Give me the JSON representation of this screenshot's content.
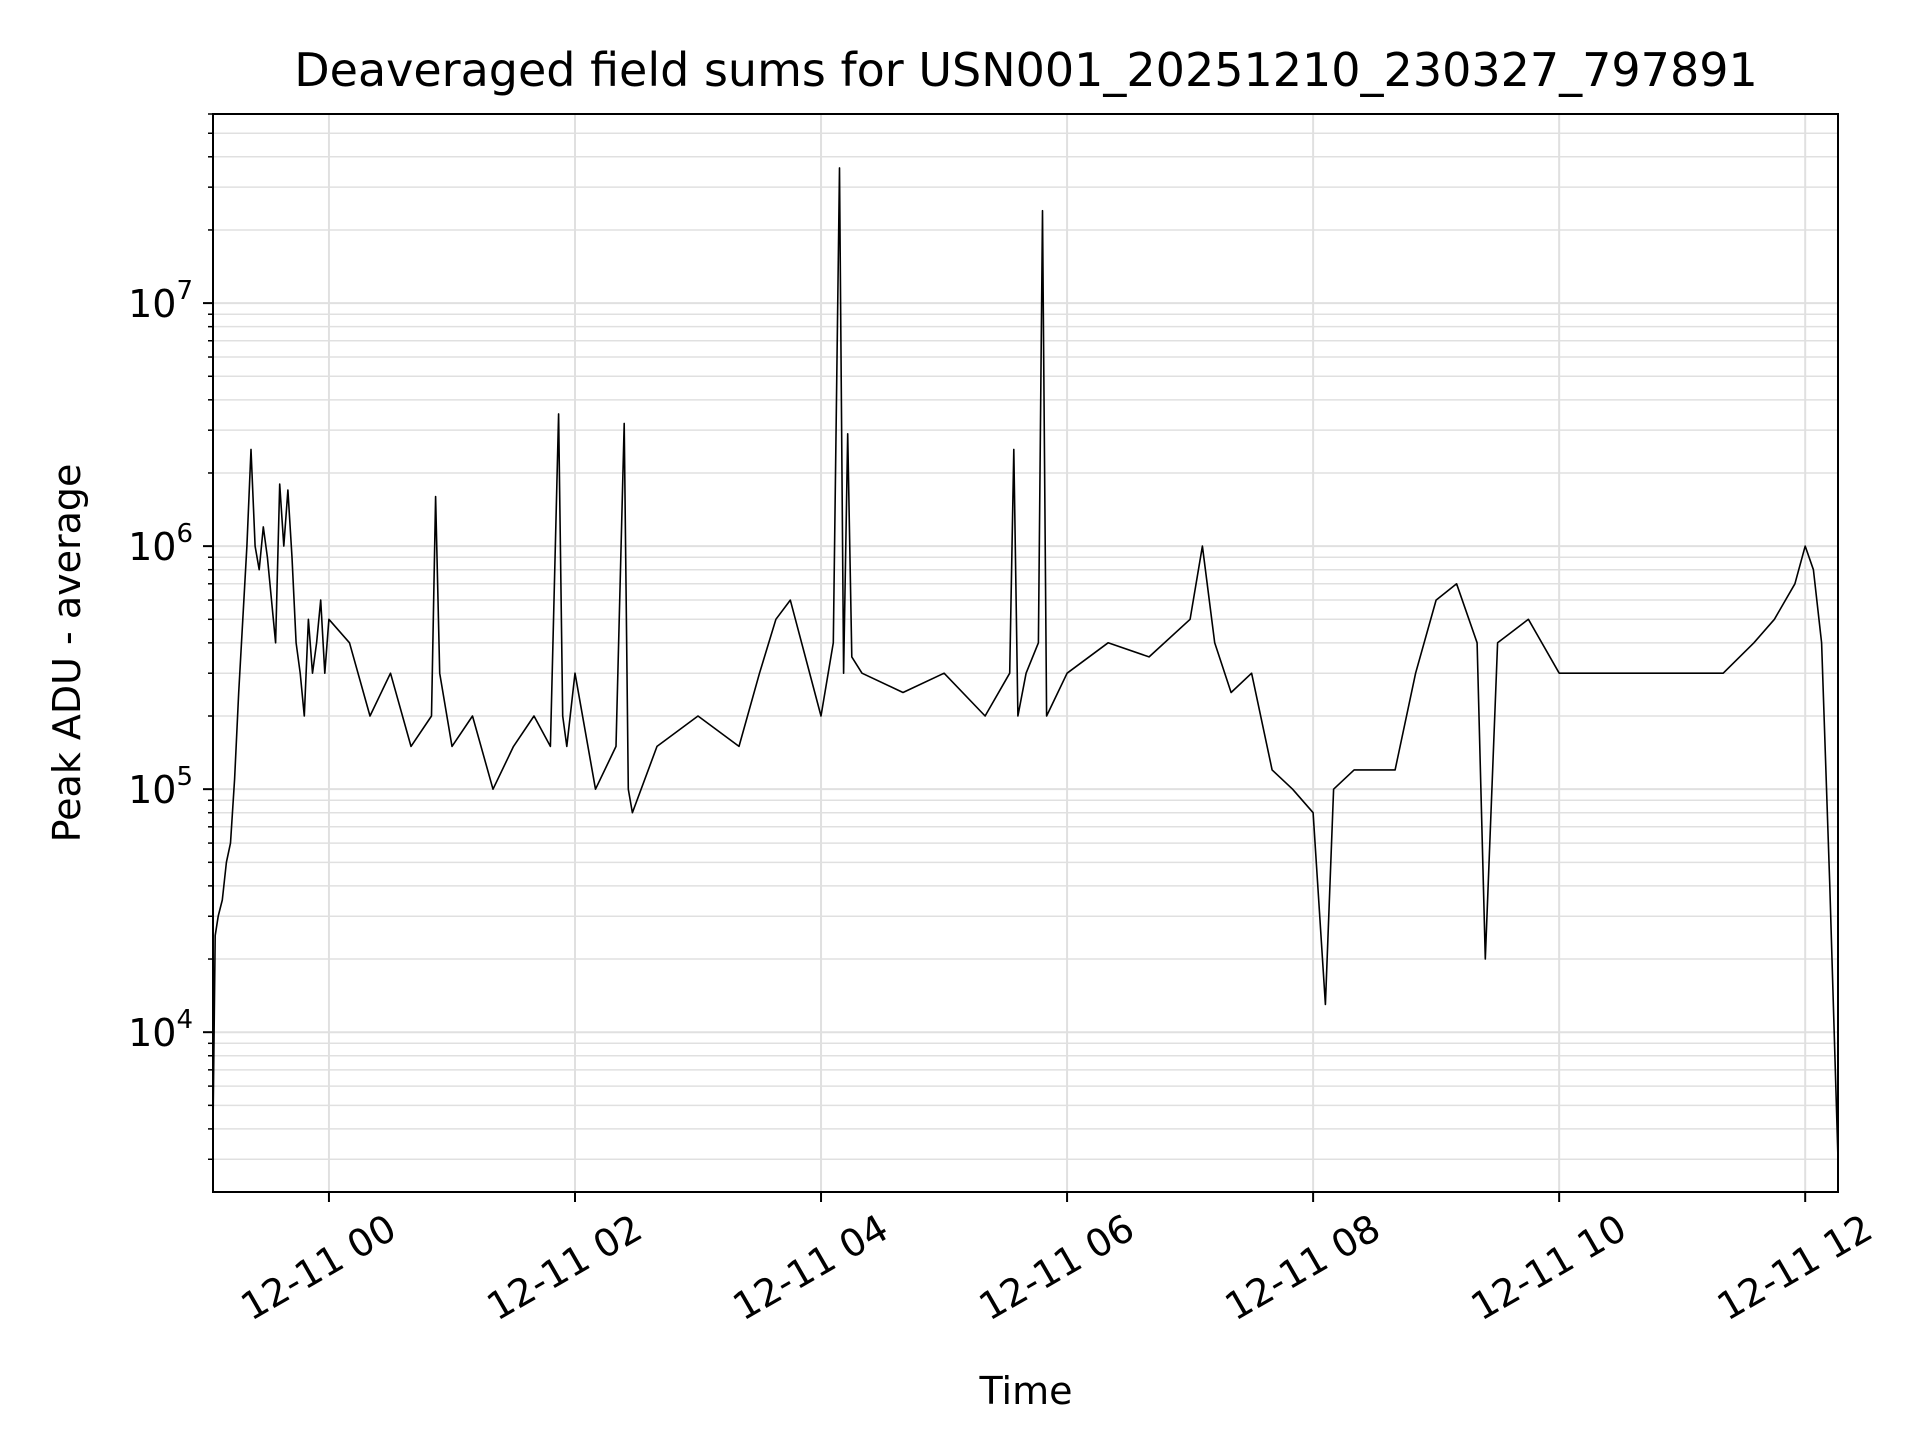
{
  "chart_data": {
    "type": "line",
    "title": "Deaveraged field sums for USN001_20251210_230327_797891",
    "xlabel": "Time",
    "ylabel": "Peak ADU - average",
    "yscale": "log",
    "grid": true,
    "legend": "none",
    "colors": {
      "line": "#000000",
      "grid": "#e0e0e0",
      "background": "#ffffff"
    },
    "xlim": [
      "2025-12-10T23:03:27",
      "2025-12-11T12:16:00"
    ],
    "ylim": [
      2200,
      60000000
    ],
    "x_ticks": [
      {
        "t": "2025-12-11T00:00:00",
        "label": "12-11 00"
      },
      {
        "t": "2025-12-11T02:00:00",
        "label": "12-11 02"
      },
      {
        "t": "2025-12-11T04:00:00",
        "label": "12-11 04"
      },
      {
        "t": "2025-12-11T06:00:00",
        "label": "12-11 06"
      },
      {
        "t": "2025-12-11T08:00:00",
        "label": "12-11 08"
      },
      {
        "t": "2025-12-11T10:00:00",
        "label": "12-11 10"
      },
      {
        "t": "2025-12-11T12:00:00",
        "label": "12-11 12"
      }
    ],
    "y_ticks": [
      {
        "value": 10000,
        "base": "10",
        "exp": "4"
      },
      {
        "value": 100000,
        "base": "10",
        "exp": "5"
      },
      {
        "value": 1000000,
        "base": "10",
        "exp": "6"
      },
      {
        "value": 10000000,
        "base": "10",
        "exp": "7"
      }
    ],
    "series": [
      {
        "x": [
          "2025-12-10T23:03:27",
          "2025-12-10T23:04:30",
          "2025-12-10T23:06:00",
          "2025-12-10T23:08:00",
          "2025-12-10T23:10:00",
          "2025-12-10T23:12:00",
          "2025-12-10T23:14:00",
          "2025-12-10T23:16:00",
          "2025-12-10T23:18:00",
          "2025-12-10T23:20:00",
          "2025-12-10T23:22:00",
          "2025-12-10T23:24:00",
          "2025-12-10T23:26:00",
          "2025-12-10T23:28:00",
          "2025-12-10T23:30:00",
          "2025-12-10T23:32:00",
          "2025-12-10T23:34:00",
          "2025-12-10T23:36:00",
          "2025-12-10T23:38:00",
          "2025-12-10T23:40:00",
          "2025-12-10T23:42:00",
          "2025-12-10T23:44:00",
          "2025-12-10T23:46:00",
          "2025-12-10T23:48:00",
          "2025-12-10T23:50:00",
          "2025-12-10T23:52:00",
          "2025-12-10T23:54:00",
          "2025-12-10T23:56:00",
          "2025-12-10T23:58:00",
          "2025-12-11T00:00:00",
          "2025-12-11T00:10:00",
          "2025-12-11T00:20:00",
          "2025-12-11T00:30:00",
          "2025-12-11T00:40:00",
          "2025-12-11T00:50:00",
          "2025-12-11T00:52:00",
          "2025-12-11T00:54:00",
          "2025-12-11T01:00:00",
          "2025-12-11T01:10:00",
          "2025-12-11T01:20:00",
          "2025-12-11T01:30:00",
          "2025-12-11T01:40:00",
          "2025-12-11T01:48:00",
          "2025-12-11T01:52:00",
          "2025-12-11T01:54:00",
          "2025-12-11T01:56:00",
          "2025-12-11T02:00:00",
          "2025-12-11T02:10:00",
          "2025-12-11T02:20:00",
          "2025-12-11T02:24:00",
          "2025-12-11T02:26:00",
          "2025-12-11T02:28:00",
          "2025-12-11T02:40:00",
          "2025-12-11T03:00:00",
          "2025-12-11T03:20:00",
          "2025-12-11T03:30:00",
          "2025-12-11T03:38:00",
          "2025-12-11T03:45:00",
          "2025-12-11T04:00:00",
          "2025-12-11T04:06:00",
          "2025-12-11T04:09:00",
          "2025-12-11T04:11:00",
          "2025-12-11T04:13:00",
          "2025-12-11T04:15:00",
          "2025-12-11T04:20:00",
          "2025-12-11T04:40:00",
          "2025-12-11T05:00:00",
          "2025-12-11T05:20:00",
          "2025-12-11T05:32:00",
          "2025-12-11T05:34:00",
          "2025-12-11T05:36:00",
          "2025-12-11T05:40:00",
          "2025-12-11T05:46:00",
          "2025-12-11T05:48:00",
          "2025-12-11T05:50:00",
          "2025-12-11T06:00:00",
          "2025-12-11T06:20:00",
          "2025-12-11T06:40:00",
          "2025-12-11T07:00:00",
          "2025-12-11T07:06:00",
          "2025-12-11T07:12:00",
          "2025-12-11T07:20:00",
          "2025-12-11T07:30:00",
          "2025-12-11T07:40:00",
          "2025-12-11T07:50:00",
          "2025-12-11T08:00:00",
          "2025-12-11T08:06:00",
          "2025-12-11T08:10:00",
          "2025-12-11T08:20:00",
          "2025-12-11T08:40:00",
          "2025-12-11T08:50:00",
          "2025-12-11T09:00:00",
          "2025-12-11T09:10:00",
          "2025-12-11T09:20:00",
          "2025-12-11T09:24:00",
          "2025-12-11T09:30:00",
          "2025-12-11T09:45:00",
          "2025-12-11T10:00:00",
          "2025-12-11T10:20:00",
          "2025-12-11T10:40:00",
          "2025-12-11T11:00:00",
          "2025-12-11T11:20:00",
          "2025-12-11T11:35:00",
          "2025-12-11T11:45:00",
          "2025-12-11T11:55:00",
          "2025-12-11T12:00:00",
          "2025-12-11T12:04:00",
          "2025-12-11T12:08:00",
          "2025-12-11T12:12:00",
          "2025-12-11T12:16:00"
        ],
        "y": [
          4000,
          25000,
          30000,
          35000,
          50000,
          60000,
          110000,
          250000,
          500000,
          1000000,
          2500000,
          1000000,
          800000,
          1200000,
          900000,
          600000,
          400000,
          1800000,
          1000000,
          1700000,
          900000,
          400000,
          300000,
          200000,
          500000,
          300000,
          400000,
          600000,
          300000,
          500000,
          400000,
          200000,
          300000,
          150000,
          200000,
          1600000,
          300000,
          150000,
          200000,
          100000,
          150000,
          200000,
          150000,
          3500000,
          200000,
          150000,
          300000,
          100000,
          150000,
          3200000,
          100000,
          80000,
          150000,
          200000,
          150000,
          300000,
          500000,
          600000,
          200000,
          400000,
          36000000,
          300000,
          2900000,
          350000,
          300000,
          250000,
          300000,
          200000,
          300000,
          2500000,
          200000,
          300000,
          400000,
          24000000,
          200000,
          300000,
          400000,
          350000,
          500000,
          1000000,
          400000,
          250000,
          300000,
          120000,
          100000,
          80000,
          13000,
          100000,
          120000,
          120000,
          300000,
          600000,
          700000,
          400000,
          20000,
          400000,
          500000,
          300000,
          300000,
          300000,
          300000,
          300000,
          400000,
          500000,
          700000,
          1000000,
          800000,
          400000,
          40000,
          3000
        ]
      }
    ]
  }
}
